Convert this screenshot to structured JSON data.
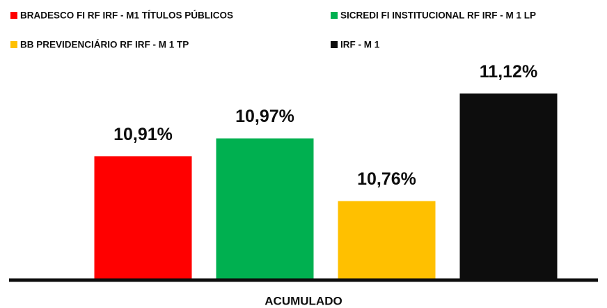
{
  "chart_data": {
    "type": "bar",
    "categories": [
      "ACUMULADO"
    ],
    "series": [
      {
        "name": "BRADESCO FI RF IRF - M1 TÍTULOS PÚBLICOS",
        "color": "#ff0000",
        "values": [
          10.91
        ],
        "value_labels": [
          "10,91%"
        ]
      },
      {
        "name": "SICREDI FI INSTITUCIONAL RF IRF - M 1 LP",
        "color": "#00b050",
        "values": [
          10.97
        ],
        "value_labels": [
          "10,97%"
        ]
      },
      {
        "name": "BB PREVIDENCIÁRIO RF IRF - M 1 TP",
        "color": "#ffc000",
        "values": [
          10.76
        ],
        "value_labels": [
          "10,76%"
        ]
      },
      {
        "name": "IRF - M 1",
        "color": "#0d0d0d",
        "values": [
          11.12
        ],
        "value_labels": [
          "11,12%"
        ]
      }
    ],
    "ylim": [
      10.5,
      11.2
    ],
    "legend": "top"
  }
}
